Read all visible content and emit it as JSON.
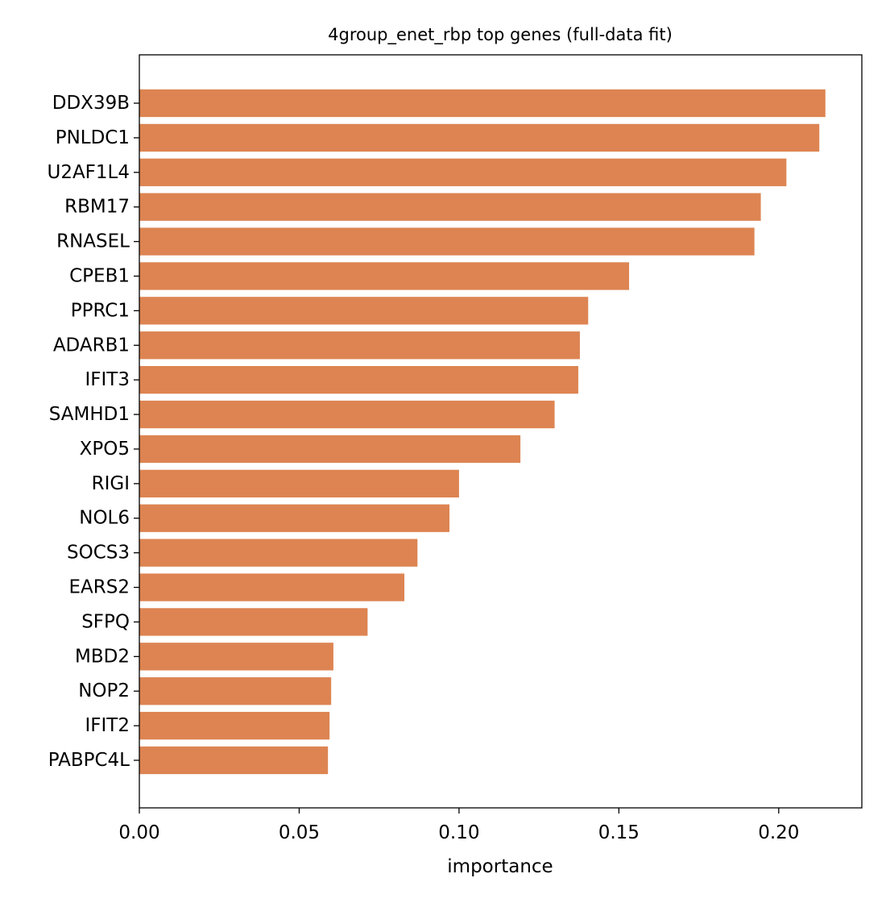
{
  "chart_data": {
    "type": "bar",
    "orientation": "horizontal",
    "title": "4group_enet_rbp top genes (full-data fit)",
    "xlabel": "importance",
    "ylabel": "",
    "xlim": [
      0,
      0.226
    ],
    "xticks": [
      "0.00",
      "0.05",
      "0.10",
      "0.15",
      "0.20"
    ],
    "xtick_values": [
      0,
      0.05,
      0.1,
      0.15,
      0.2
    ],
    "categories": [
      "DDX39B",
      "PNLDC1",
      "U2AF1L4",
      "RBM17",
      "RNASEL",
      "CPEB1",
      "PPRC1",
      "ADARB1",
      "IFIT3",
      "SAMHD1",
      "XPO5",
      "RIGI",
      "NOL6",
      "SOCS3",
      "EARS2",
      "SFPQ",
      "MBD2",
      "NOP2",
      "IFIT2",
      "PABPC4L"
    ],
    "values": [
      0.2146,
      0.2127,
      0.2024,
      0.1944,
      0.1924,
      0.1532,
      0.1404,
      0.1378,
      0.1373,
      0.1299,
      0.1192,
      0.1,
      0.097,
      0.087,
      0.0829,
      0.0714,
      0.0607,
      0.06,
      0.0595,
      0.059
    ],
    "bar_color": "#dd8452",
    "grid": false,
    "legend": "none"
  }
}
